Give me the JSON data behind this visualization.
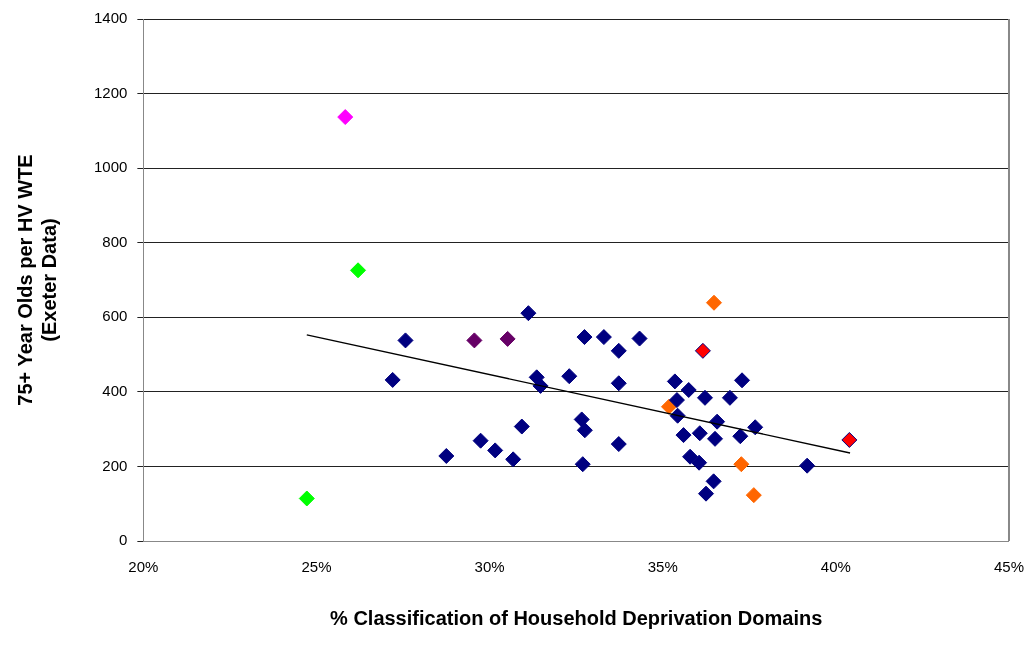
{
  "chart_data": {
    "type": "scatter",
    "xlabel": "% Classification of Household Deprivation Domains",
    "ylabel": "75+ Year Olds per HV WTE\n(Exeter Data)",
    "xlim": [
      20,
      45
    ],
    "xticks": [
      {
        "value": 20,
        "label": "20%"
      },
      {
        "value": 25,
        "label": "25%"
      },
      {
        "value": 30,
        "label": "30%"
      },
      {
        "value": 35,
        "label": "35%"
      },
      {
        "value": 40,
        "label": "40%"
      },
      {
        "value": 45,
        "label": "45%"
      }
    ],
    "ylim": [
      0,
      1400
    ],
    "yticks": [
      0,
      200,
      400,
      600,
      800,
      1000,
      1200,
      1400
    ],
    "grid": "y",
    "legend": false,
    "marker": "diamond",
    "series": [
      {
        "color": "#000080",
        "x": [
          31.12,
          27.57,
          27.2,
          31.36,
          31.47,
          32.3,
          30.93,
          29.74,
          30.16,
          30.68,
          28.75,
          32.74,
          33.3,
          33.73,
          34.33,
          33.73,
          35.35,
          35.75,
          36.22,
          36.94,
          37.29,
          35.41,
          35.43,
          32.66,
          32.75,
          33.73,
          36.57,
          37.67,
          35.6,
          36.07,
          36.51,
          37.24,
          32.69,
          35.79,
          36.05,
          39.17,
          36.47,
          36.25
        ],
        "values": [
          611,
          538,
          432,
          439,
          416,
          442,
          307,
          269,
          243,
          219,
          228,
          547,
          547,
          510,
          543,
          423,
          428,
          405,
          384,
          384,
          431,
          378,
          336,
          326,
          297,
          260,
          320,
          305,
          284,
          289,
          274,
          281,
          206,
          226,
          210,
          202,
          160,
          127
        ]
      },
      {
        "color": "#ff00ff",
        "x": [
          25.83
        ],
        "values": [
          1137
        ]
      },
      {
        "color": "#00ff00",
        "x": [
          26.2,
          24.72
        ],
        "values": [
          726,
          114
        ]
      },
      {
        "color": "#660066",
        "x": [
          29.56,
          30.52
        ],
        "values": [
          538,
          542
        ]
      },
      {
        "color": "#ff6600",
        "x": [
          36.48,
          35.18,
          37.27,
          37.63
        ],
        "values": [
          639,
          360,
          206,
          123
        ]
      },
      {
        "color": "#ff0000",
        "x": [
          36.16,
          40.39
        ],
        "values": [
          510,
          271
        ]
      },
      {
        "type": "line",
        "color": "#000000",
        "marker": "none",
        "x": [
          24.72,
          40.41
        ],
        "values": [
          553,
          236
        ]
      }
    ]
  }
}
